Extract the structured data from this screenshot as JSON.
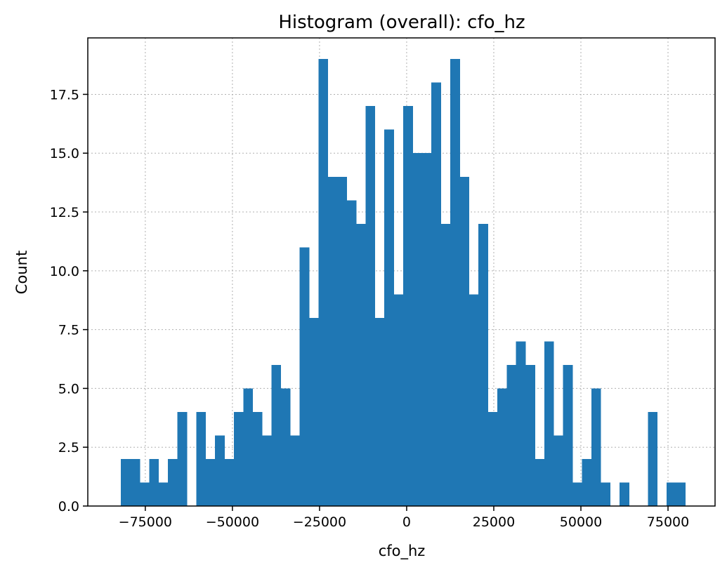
{
  "chart_data": {
    "type": "bar",
    "title": "Histogram (overall): cfo_hz",
    "xlabel": "cfo_hz",
    "ylabel": "Count",
    "xlim": [
      -91500,
      88500
    ],
    "ylim": [
      0,
      19.9
    ],
    "grid": true,
    "bar_color": "#1f77b4",
    "bin_start": -82000,
    "bin_width": 2700,
    "counts": [
      2,
      2,
      1,
      2,
      1,
      2,
      4,
      0,
      4,
      2,
      3,
      2,
      4,
      5,
      4,
      3,
      6,
      5,
      3,
      11,
      8,
      19,
      14,
      14,
      13,
      12,
      17,
      8,
      16,
      9,
      17,
      15,
      15,
      18,
      12,
      19,
      14,
      9,
      12,
      4,
      5,
      6,
      7,
      6,
      2,
      7,
      3,
      6,
      1,
      2,
      5,
      1,
      0,
      1,
      0,
      0,
      4,
      0,
      1,
      1
    ],
    "xticks": [
      -75000,
      -50000,
      -25000,
      0,
      25000,
      50000,
      75000
    ],
    "xtick_labels": [
      "−75000",
      "−50000",
      "−25000",
      "0",
      "25000",
      "50000",
      "75000"
    ],
    "yticks": [
      0,
      2.5,
      5,
      7.5,
      10,
      12.5,
      15,
      17.5
    ],
    "ytick_labels": [
      "0.0",
      "2.5",
      "5.0",
      "7.5",
      "10.0",
      "12.5",
      "15.0",
      "17.5"
    ]
  }
}
